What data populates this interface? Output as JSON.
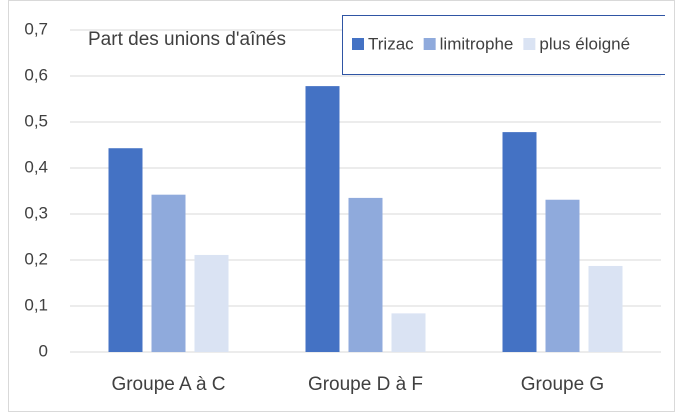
{
  "chart_data": {
    "type": "bar",
    "title": "Part des unions d'aînés",
    "categories": [
      "Groupe A à C",
      "Groupe D à F",
      "Groupe G"
    ],
    "series": [
      {
        "name": "Trizac",
        "color": "#4472c4",
        "values": [
          0.443,
          0.578,
          0.478
        ]
      },
      {
        "name": "limitrophe",
        "color": "#8faadc",
        "values": [
          0.342,
          0.335,
          0.331
        ]
      },
      {
        "name": "plus éloigné",
        "color": "#dae3f3",
        "values": [
          0.211,
          0.084,
          0.187
        ]
      }
    ],
    "ylim": [
      0,
      0.7
    ],
    "yticks": [
      0,
      {
        "value": 0.1,
        "label": "0,1"
      },
      {
        "value": 0.2,
        "label": "0,2"
      },
      {
        "value": 0.3,
        "label": "0,3"
      },
      {
        "value": 0.4,
        "label": "0,4"
      },
      {
        "value": 0.5,
        "label": "0,5"
      },
      {
        "value": 0.6,
        "label": "0,6"
      },
      {
        "value": 0.7,
        "label": "0,7"
      }
    ],
    "grid": true,
    "legend": "top-right"
  }
}
